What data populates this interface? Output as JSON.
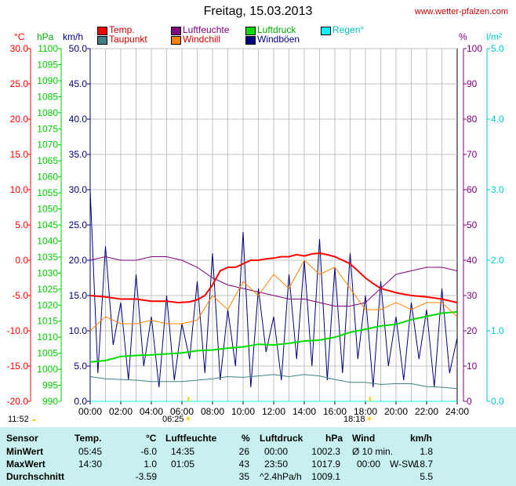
{
  "header": {
    "title": "Freitag, 15.03.2013",
    "website": "www.wetter-pfalzen.com"
  },
  "units": {
    "temp": "°C",
    "pressure": "hPa",
    "wind": "km/h",
    "humidity": "%",
    "rain": "l/m²"
  },
  "legend": [
    {
      "label": "Temp.",
      "color": "#ff0000"
    },
    {
      "label": "Luftfeuchte",
      "color": "#800080"
    },
    {
      "label": "Luftdruck",
      "color": "#00dd00"
    },
    {
      "label": "Regen°",
      "color": "#00ffff"
    },
    {
      "label": "Taupunkt",
      "color": "#408080"
    },
    {
      "label": "Windchill",
      "color": "#ff8000"
    },
    {
      "label": "Windböen",
      "color": "#000080"
    }
  ],
  "sun": {
    "moon_time": "11:52",
    "sunrise": "06:25",
    "sunset": "18:18"
  },
  "chart_data": {
    "type": "line",
    "x_ticks": [
      "00:00",
      "02:00",
      "04:00",
      "06:00",
      "08:00",
      "10:00",
      "12:00",
      "14:00",
      "16:00",
      "18:00",
      "20:00",
      "22:00",
      "24:00"
    ],
    "xlim": [
      0,
      24
    ],
    "grid": true,
    "axes": {
      "temp": {
        "ylim": [
          -20,
          30
        ],
        "ticks": [
          "30.0",
          "25.0",
          "20.0",
          "15.0",
          "10.0",
          "5.0",
          "0.0",
          "-5.0",
          "-10.0",
          "-15.0",
          "-20.0"
        ]
      },
      "pressure": {
        "ylim": [
          990,
          1100
        ],
        "ticks": [
          "1100",
          "1095",
          "1090",
          "1085",
          "1080",
          "1075",
          "1070",
          "1065",
          "1060",
          "1055",
          "1050",
          "1045",
          "1040",
          "1035",
          "1030",
          "1025",
          "1020",
          "1015",
          "1010",
          "1005",
          "1000",
          "995",
          "990"
        ]
      },
      "wind": {
        "ylim": [
          0,
          50
        ],
        "ticks": [
          "50.0",
          "45.0",
          "40.0",
          "35.0",
          "30.0",
          "25.0",
          "20.0",
          "15.0",
          "10.0",
          "5.0",
          "0.0"
        ]
      },
      "humidity": {
        "ylim": [
          0,
          100
        ],
        "ticks": [
          "100",
          "90",
          "80",
          "70",
          "60",
          "50",
          "40",
          "30",
          "20",
          "10",
          "0"
        ]
      },
      "rain": {
        "ylim": [
          0,
          5
        ],
        "ticks": [
          "5.0",
          "4.0",
          "3.0",
          "2.0",
          "1.0",
          "0.0"
        ]
      }
    },
    "series": [
      {
        "name": "Temp.",
        "axis": "temp",
        "color": "#ff0000",
        "x": [
          0,
          1,
          2,
          3,
          4,
          5,
          5.75,
          6.5,
          7,
          7.5,
          8,
          8.5,
          9,
          9.5,
          10,
          10.5,
          11,
          11.5,
          12,
          12.5,
          13,
          13.5,
          14,
          14.5,
          15,
          15.5,
          16,
          16.5,
          17,
          17.5,
          18,
          18.5,
          19,
          19.5,
          20,
          21,
          22,
          23,
          24
        ],
        "y": [
          -5.0,
          -5.2,
          -5.5,
          -5.5,
          -5.8,
          -5.8,
          -6.0,
          -5.9,
          -5.6,
          -5.0,
          -3.5,
          -1.5,
          -1.0,
          -1.0,
          -0.5,
          0.0,
          0.0,
          0.2,
          0.3,
          0.5,
          0.5,
          0.8,
          0.6,
          0.9,
          1.0,
          0.8,
          0.5,
          0.0,
          -0.5,
          -1.5,
          -2.5,
          -3.3,
          -4.0,
          -4.3,
          -4.6,
          -5.0,
          -5.2,
          -5.5,
          -6.0
        ]
      },
      {
        "name": "Luftfeuchte",
        "axis": "humidity",
        "color": "#800080",
        "x": [
          0,
          1,
          2,
          3,
          4,
          5,
          6,
          7,
          8,
          9,
          10,
          11,
          12,
          13,
          14,
          15,
          16,
          17,
          18,
          19,
          20,
          21,
          22,
          23,
          24
        ],
        "y": [
          40,
          41,
          40,
          40,
          41,
          41,
          40,
          38,
          35,
          33,
          32,
          31,
          30,
          29,
          29,
          28,
          27,
          27,
          28,
          32,
          36,
          37,
          38,
          38,
          37
        ]
      },
      {
        "name": "Luftdruck",
        "axis": "pressure",
        "color": "#00dd00",
        "x": [
          0,
          1,
          2,
          3,
          4,
          5,
          6,
          7,
          8,
          9,
          10,
          11,
          12,
          13,
          14,
          15,
          16,
          17,
          18,
          19,
          20,
          21,
          22,
          23,
          24
        ],
        "y": [
          1002.3,
          1002.7,
          1004,
          1004.3,
          1004.5,
          1004.8,
          1005.1,
          1005.8,
          1006,
          1006.6,
          1007,
          1007.8,
          1007.6,
          1008.1,
          1008.8,
          1009.1,
          1010,
          1011.5,
          1012.5,
          1013.5,
          1014,
          1015.5,
          1016.5,
          1017.5,
          1017.9
        ]
      },
      {
        "name": "Taupunkt",
        "axis": "temp",
        "color": "#408080",
        "x": [
          0,
          1,
          2,
          3,
          4,
          5,
          6,
          7,
          8,
          9,
          10,
          11,
          12,
          13,
          14,
          15,
          16,
          17,
          18,
          19,
          20,
          21,
          22,
          23,
          24
        ],
        "y": [
          -16.5,
          -16.8,
          -16.9,
          -17.0,
          -17.2,
          -17.2,
          -17.2,
          -17.0,
          -16.8,
          -16.5,
          -16.6,
          -16.4,
          -16.2,
          -16.5,
          -16.2,
          -16.4,
          -16.9,
          -17.3,
          -17.3,
          -17.6,
          -17.5,
          -17.5,
          -17.9,
          -18.0,
          -18.2
        ]
      },
      {
        "name": "Windchill",
        "axis": "temp",
        "color": "#ff8000",
        "x": [
          0,
          1,
          2,
          3,
          4,
          5,
          6,
          7,
          8,
          9,
          10,
          11,
          12,
          13,
          14,
          15,
          16,
          17,
          18,
          19,
          20,
          21,
          22,
          23,
          24
        ],
        "y": [
          -10,
          -8,
          -9,
          -9,
          -8.5,
          -9,
          -9,
          -8.5,
          -5,
          -7,
          -3,
          -5,
          -2,
          -4,
          0,
          -2,
          -1,
          -4,
          -7,
          -7,
          -6,
          -7,
          -6,
          -6,
          -8
        ]
      },
      {
        "name": "Windböen",
        "axis": "wind",
        "color": "#000080",
        "x": [
          0,
          0.5,
          1,
          1.5,
          2,
          2.5,
          3,
          3.5,
          4,
          4.5,
          5,
          5.5,
          6,
          6.5,
          7,
          7.5,
          8,
          8.5,
          9,
          9.5,
          10,
          10.5,
          11,
          11.5,
          12,
          12.5,
          13,
          13.5,
          14,
          14.5,
          15,
          15.5,
          16,
          16.5,
          17,
          17.5,
          18,
          18.5,
          19,
          19.5,
          20,
          20.5,
          21,
          21.5,
          22,
          22.5,
          23,
          23.5,
          24
        ],
        "y": [
          30,
          4,
          22,
          8,
          14,
          3,
          18,
          5,
          12,
          2,
          15,
          3,
          11,
          6,
          17,
          4,
          21,
          3,
          13,
          5,
          24,
          2,
          16,
          7,
          12,
          3,
          18,
          6,
          20,
          5,
          23,
          3,
          19,
          4,
          21,
          6,
          15,
          2,
          17,
          5,
          12,
          3,
          14,
          6,
          13,
          2,
          16,
          4,
          9
        ]
      },
      {
        "name": "Regen°",
        "axis": "rain",
        "color": "#00ffff",
        "x": [
          0,
          24
        ],
        "y": [
          0,
          0
        ]
      }
    ]
  },
  "stats": {
    "headers": {
      "sensor": "Sensor",
      "temp": "Temp.",
      "temp_unit": "°C",
      "hum": "Luftfeuchte",
      "hum_unit": "%",
      "press": "Luftdruck",
      "press_unit": "hPa",
      "wind": "Wind",
      "wind_unit": "km/h"
    },
    "rows": [
      {
        "label": "MinWert",
        "temp_time": "05:45",
        "temp_val": "-6.0",
        "hum_time": "14:35",
        "hum_val": "26",
        "press_time": "00:00",
        "press_val": "1002.3",
        "wind_time": "Ø 10 min.",
        "wind_val": "1.8"
      },
      {
        "label": "MaxWert",
        "temp_time": "14:30",
        "temp_val": "1.0",
        "hum_time": "01:05",
        "hum_val": "43",
        "press_time": "23:50",
        "press_val": "1017.9",
        "wind_time": "00:00",
        "wind_dir": "W-SW",
        "wind_val": "18.7"
      },
      {
        "label": "Durchschnitt",
        "temp_time": "",
        "temp_val": "-3.59",
        "hum_time": "",
        "hum_val": "35",
        "press_time": "^2.4hPa/h",
        "press_val": "1009.1",
        "wind_time": "",
        "wind_val": "5.5"
      }
    ]
  }
}
